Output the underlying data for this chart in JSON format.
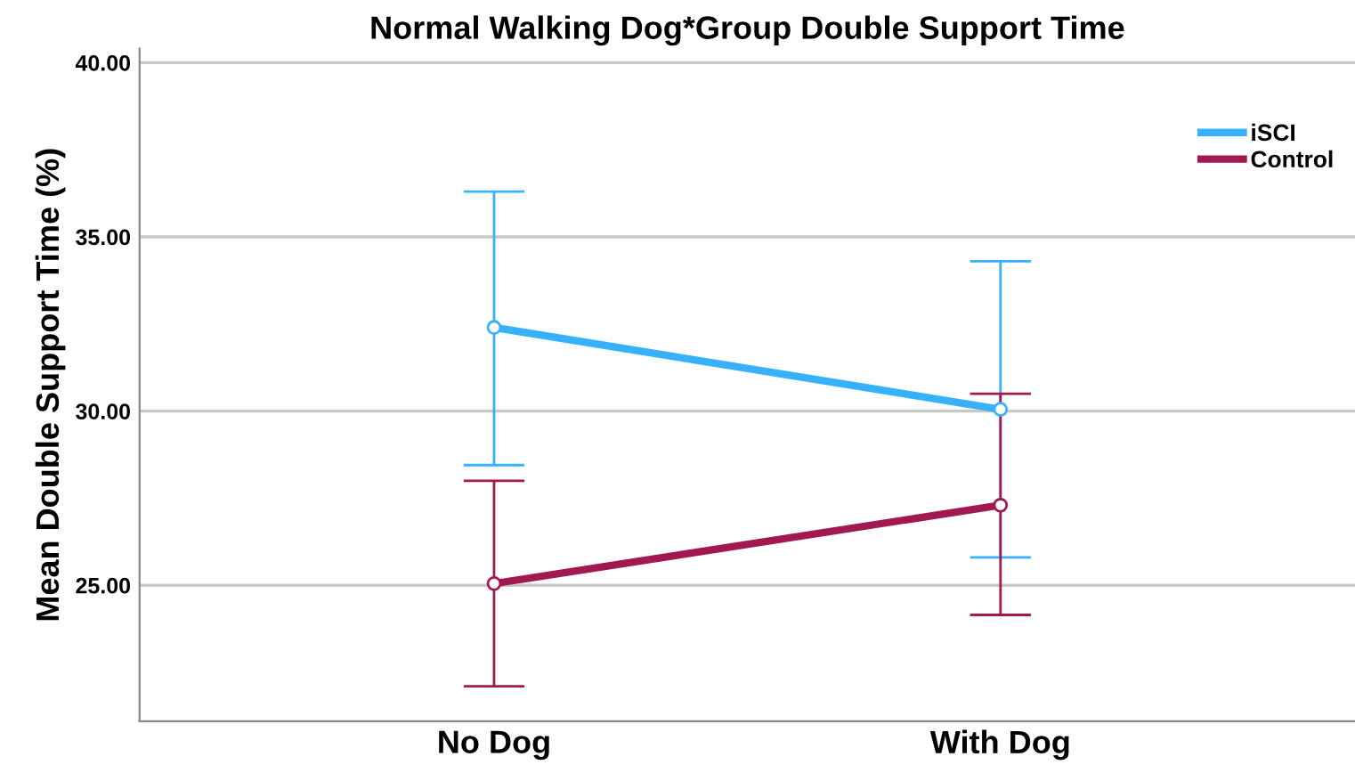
{
  "chart_data": {
    "type": "line",
    "title": "Normal Walking Dog*Group Double Support Time",
    "ylabel": "Mean Double Support Time (%)",
    "categories": [
      "No Dog",
      "With Dog"
    ],
    "series": [
      {
        "name": "iSCI",
        "color": "#38b1fc",
        "values": [
          32.4,
          30.05
        ],
        "errors": [
          [
            28.45,
            36.3
          ],
          [
            25.8,
            34.3
          ]
        ]
      },
      {
        "name": "Control",
        "color": "#a2194f",
        "values": [
          25.05,
          27.3
        ],
        "errors": [
          [
            22.1,
            28.0
          ],
          [
            24.15,
            30.5
          ]
        ]
      }
    ],
    "ylim": [
      21.1,
      40.4
    ],
    "yticks": [
      {
        "value": 25,
        "label": "25.00"
      },
      {
        "value": 30,
        "label": "30.00"
      },
      {
        "value": 35,
        "label": "35.00"
      },
      {
        "value": 40,
        "label": "40.00"
      }
    ],
    "grid": "y",
    "legend": "top right",
    "marker": "circle",
    "line_style": "solid"
  }
}
